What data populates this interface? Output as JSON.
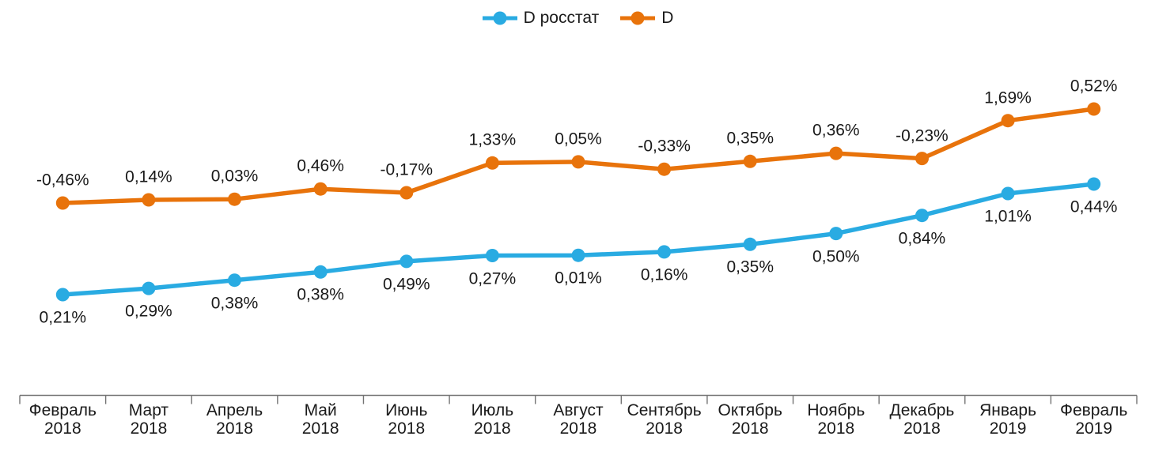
{
  "chart_data": {
    "type": "line",
    "title": "",
    "legend_position": "top-center",
    "grid": false,
    "y_axis_visible": false,
    "value_format": "percent-comma-decimal",
    "lines_show": "cumulative_sum_of_monthly_values",
    "background_color": "#FFFFFF",
    "axis_line_color": "#737373",
    "text_color": "#1a1a1a",
    "categories": [
      {
        "month": "Февраль",
        "year": "2018"
      },
      {
        "month": "Март",
        "year": "2018"
      },
      {
        "month": "Апрель",
        "year": "2018"
      },
      {
        "month": "Май",
        "year": "2018"
      },
      {
        "month": "Июнь",
        "year": "2018"
      },
      {
        "month": "Июль",
        "year": "2018"
      },
      {
        "month": "Август",
        "year": "2018"
      },
      {
        "month": "Сентябрь",
        "year": "2018"
      },
      {
        "month": "Октябрь",
        "year": "2018"
      },
      {
        "month": "Ноябрь",
        "year": "2018"
      },
      {
        "month": "Декабрь",
        "year": "2018"
      },
      {
        "month": "Январь",
        "year": "2019"
      },
      {
        "month": "Февраль",
        "year": "2019"
      }
    ],
    "series": [
      {
        "name": "D росстат",
        "color": "#29ABE2",
        "labels": [
          "0,21%",
          "0,29%",
          "0,38%",
          "0,38%",
          "0,49%",
          "0,27%",
          "0,01%",
          "0,16%",
          "0,35%",
          "0,50%",
          "0,84%",
          "1,01%",
          "0,44%"
        ],
        "values": [
          0.21,
          0.29,
          0.38,
          0.38,
          0.49,
          0.27,
          0.01,
          0.16,
          0.35,
          0.5,
          0.84,
          1.01,
          0.44
        ]
      },
      {
        "name": "D",
        "color": "#E8730B",
        "labels": [
          "-0,46%",
          "0,14%",
          "0,03%",
          "0,46%",
          "-0,17%",
          "1,33%",
          "0,05%",
          "-0,33%",
          "0,35%",
          "0,36%",
          "-0,23%",
          "1,69%",
          "0,52%"
        ],
        "values": [
          -0.46,
          0.14,
          0.03,
          0.46,
          -0.17,
          1.33,
          0.05,
          -0.33,
          0.35,
          0.36,
          -0.23,
          1.69,
          0.52
        ]
      }
    ]
  }
}
